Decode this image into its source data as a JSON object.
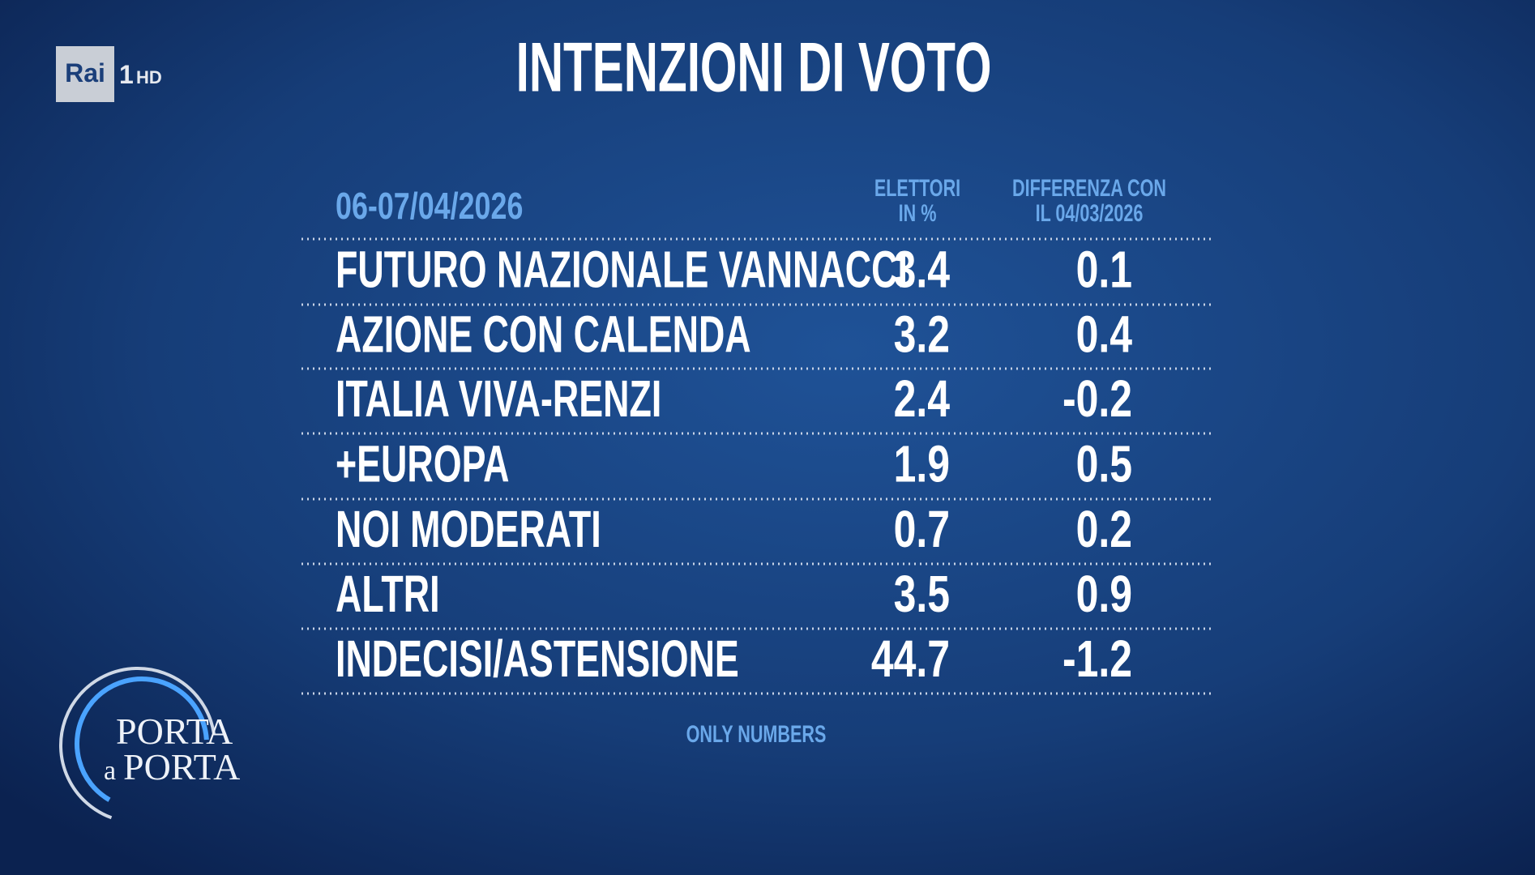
{
  "logo": {
    "channel": "Rai",
    "number": "1",
    "suffix": "HD"
  },
  "title": "INTENZIONI DI VOTO",
  "table": {
    "date": "06-07/04/2026",
    "column_headers": [
      [
        "ELETTORI",
        "IN %"
      ],
      [
        "DIFFERENZA CON",
        "IL 04/03/2026"
      ]
    ],
    "rows": [
      [
        "FUTURO NAZIONALE VANNACCI",
        "3.4",
        "0.1"
      ],
      [
        "AZIONE CON CALENDA",
        "3.2",
        "0.4"
      ],
      [
        "ITALIA VIVA-RENZI",
        "2.4",
        "-0.2"
      ],
      [
        "+EUROPA",
        "1.9",
        "0.5"
      ],
      [
        "NOI MODERATI",
        "0.7",
        "0.2"
      ],
      [
        "ALTRI",
        "3.5",
        "0.9"
      ],
      [
        "INDECISI/ASTENSIONE",
        "44.7",
        "-1.2"
      ]
    ],
    "footnote": "ONLY NUMBERS"
  },
  "show_logo": {
    "line1": "PORTA",
    "small": "a",
    "line2": "PORTA"
  }
}
